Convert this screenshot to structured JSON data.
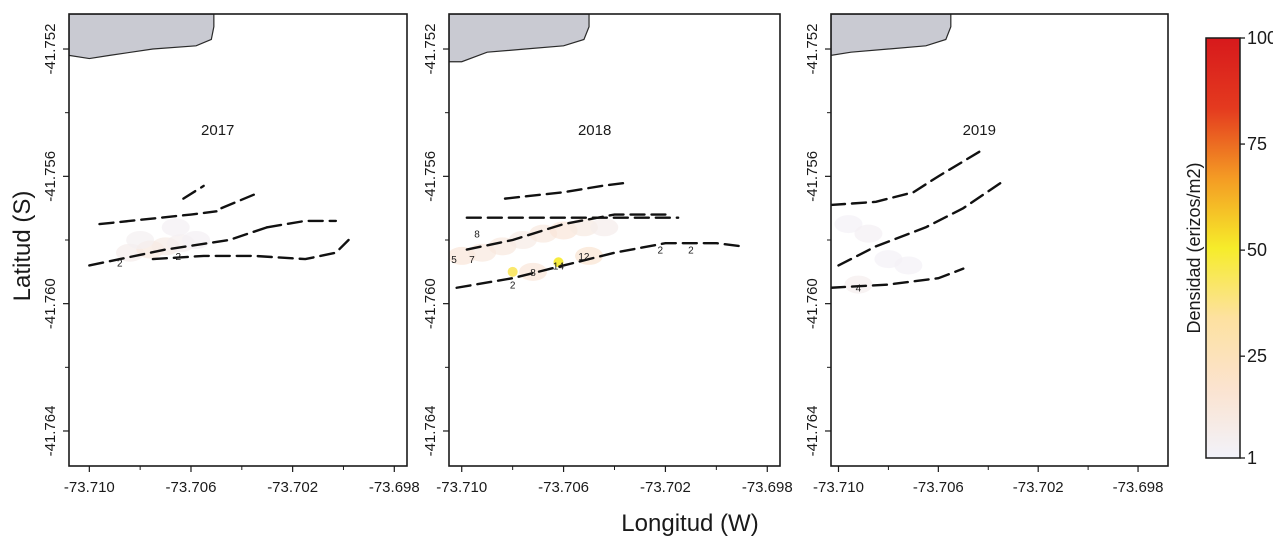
{
  "figure": {
    "xlabel": "Longitud (W)",
    "ylabel": "Latitud (S)"
  },
  "chart_data": [
    {
      "type": "heatmap",
      "title": "2017",
      "x_ticks": [
        "-73.710",
        "-73.706",
        "-73.702",
        "-73.698"
      ],
      "x_tick_values": [
        -73.71,
        -73.706,
        -73.702,
        -73.698
      ],
      "y_ticks": [
        "-41.752",
        "-41.756",
        "-41.760",
        "-41.764"
      ],
      "y_tick_values": [
        -41.752,
        -41.756,
        -41.76,
        -41.764
      ],
      "xlim": [
        -73.7108,
        -73.6975
      ],
      "ylim": [
        -41.7651,
        -41.7509
      ],
      "land_polygon": [
        [
          -73.7108,
          -41.7509
        ],
        [
          -73.7051,
          -41.7509
        ],
        [
          -73.7051,
          -41.7513
        ],
        [
          -73.7052,
          -41.7517
        ],
        [
          -73.7058,
          -41.7519
        ],
        [
          -73.7075,
          -41.752
        ],
        [
          -73.7092,
          -41.7522
        ],
        [
          -73.71,
          -41.7523
        ],
        [
          -73.7108,
          -41.7522
        ]
      ],
      "transects": [
        [
          [
            -73.7096,
            -41.7575
          ],
          [
            -73.706,
            -41.7572
          ],
          [
            -73.705,
            -41.7571
          ]
        ],
        [
          [
            -73.7063,
            -41.7567
          ],
          [
            -73.7055,
            -41.7563
          ]
        ],
        [
          [
            -73.7048,
            -41.757
          ],
          [
            -73.7033,
            -41.7565
          ]
        ],
        [
          [
            -73.71,
            -41.7588
          ],
          [
            -73.707,
            -41.7583
          ],
          [
            -73.7045,
            -41.758
          ],
          [
            -73.703,
            -41.7576
          ]
        ],
        [
          [
            -73.703,
            -41.7576
          ],
          [
            -73.7015,
            -41.7574
          ],
          [
            -73.7003,
            -41.7574
          ]
        ],
        [
          [
            -73.7075,
            -41.7586
          ],
          [
            -73.7055,
            -41.7585
          ],
          [
            -73.7035,
            -41.7585
          ],
          [
            -73.7015,
            -41.7586
          ],
          [
            -73.7003,
            -41.7584
          ],
          [
            -73.6998,
            -41.758
          ]
        ]
      ],
      "density_points": [
        {
          "x": -73.7084,
          "y": -41.7584,
          "value": 6
        },
        {
          "x": -73.7076,
          "y": -41.7583,
          "value": 10
        },
        {
          "x": -73.707,
          "y": -41.7582,
          "value": 8
        },
        {
          "x": -73.7064,
          "y": -41.7581,
          "value": 5
        },
        {
          "x": -73.7058,
          "y": -41.758,
          "value": 3
        },
        {
          "x": -73.708,
          "y": -41.758,
          "value": 4
        },
        {
          "x": -73.7066,
          "y": -41.7576,
          "value": 3
        }
      ],
      "labels": [
        {
          "text": "2",
          "x": -73.7088,
          "y": -41.7587
        },
        {
          "text": "2",
          "x": -73.7065,
          "y": -41.7585
        }
      ]
    },
    {
      "type": "heatmap",
      "title": "2018",
      "x_ticks": [
        "-73.710",
        "-73.706",
        "-73.702",
        "-73.698"
      ],
      "x_tick_values": [
        -73.71,
        -73.706,
        -73.702,
        -73.698
      ],
      "y_ticks": [
        "-41.752",
        "-41.756",
        "-41.760",
        "-41.764"
      ],
      "y_tick_values": [
        -41.752,
        -41.756,
        -41.76,
        -41.764
      ],
      "xlim": [
        -73.7105,
        -73.6975
      ],
      "ylim": [
        -41.7651,
        -41.7509
      ],
      "land_polygon": [
        [
          -73.7105,
          -41.7509
        ],
        [
          -73.705,
          -41.7509
        ],
        [
          -73.705,
          -41.7513
        ],
        [
          -73.7052,
          -41.7517
        ],
        [
          -73.706,
          -41.7519
        ],
        [
          -73.7075,
          -41.752
        ],
        [
          -73.709,
          -41.7521
        ],
        [
          -73.71,
          -41.7524
        ],
        [
          -73.7105,
          -41.7524
        ]
      ],
      "transects": [
        [
          [
            -73.7083,
            -41.7567
          ],
          [
            -73.706,
            -41.7565
          ],
          [
            -73.7045,
            -41.7563
          ],
          [
            -73.7035,
            -41.7562
          ]
        ],
        [
          [
            -73.7098,
            -41.7573
          ],
          [
            -73.708,
            -41.7573
          ],
          [
            -73.706,
            -41.7573
          ],
          [
            -73.704,
            -41.7573
          ],
          [
            -73.7015,
            -41.7573
          ]
        ],
        [
          [
            -73.7098,
            -41.7583
          ],
          [
            -73.708,
            -41.758
          ],
          [
            -73.706,
            -41.7575
          ],
          [
            -73.704,
            -41.7572
          ],
          [
            -73.702,
            -41.7572
          ]
        ],
        [
          [
            -73.7102,
            -41.7595
          ],
          [
            -73.708,
            -41.7592
          ],
          [
            -73.706,
            -41.7588
          ],
          [
            -73.704,
            -41.7584
          ],
          [
            -73.702,
            -41.7581
          ],
          [
            -73.7,
            -41.7581
          ],
          [
            -73.699,
            -41.7582
          ]
        ]
      ],
      "density_points": [
        {
          "x": -73.71,
          "y": -41.7585,
          "value": 12
        },
        {
          "x": -73.7092,
          "y": -41.7584,
          "value": 10
        },
        {
          "x": -73.7084,
          "y": -41.7582,
          "value": 10
        },
        {
          "x": -73.7076,
          "y": -41.758,
          "value": 8
        },
        {
          "x": -73.7068,
          "y": -41.7578,
          "value": 10
        },
        {
          "x": -73.706,
          "y": -41.7577,
          "value": 12
        },
        {
          "x": -73.7052,
          "y": -41.7576,
          "value": 9
        },
        {
          "x": -73.7044,
          "y": -41.7576,
          "value": 6
        },
        {
          "x": -73.708,
          "y": -41.759,
          "value": 40
        },
        {
          "x": -73.7062,
          "y": -41.7587,
          "value": 48
        },
        {
          "x": -73.7072,
          "y": -41.759,
          "value": 12
        },
        {
          "x": -73.705,
          "y": -41.7585,
          "value": 14
        }
      ],
      "labels": [
        {
          "text": "8",
          "x": -73.7094,
          "y": -41.7578
        },
        {
          "text": "7",
          "x": -73.7096,
          "y": -41.7586
        },
        {
          "text": "5",
          "x": -73.7103,
          "y": -41.7586
        },
        {
          "text": "2",
          "x": -73.708,
          "y": -41.7594
        },
        {
          "text": "8",
          "x": -73.7072,
          "y": -41.759
        },
        {
          "text": "14",
          "x": -73.7062,
          "y": -41.7588
        },
        {
          "text": "12",
          "x": -73.7052,
          "y": -41.7585
        },
        {
          "text": "2",
          "x": -73.7022,
          "y": -41.7583
        },
        {
          "text": "2",
          "x": -73.701,
          "y": -41.7583
        }
      ]
    },
    {
      "type": "heatmap",
      "title": "2019",
      "x_ticks": [
        "-73.710",
        "-73.706",
        "-73.702",
        "-73.698"
      ],
      "x_tick_values": [
        -73.71,
        -73.706,
        -73.702,
        -73.698
      ],
      "y_ticks": [
        "-41.752",
        "-41.756",
        "-41.760",
        "-41.764"
      ],
      "y_tick_values": [
        -41.752,
        -41.756,
        -41.76,
        -41.764
      ],
      "xlim": [
        -73.7103,
        -73.6968
      ],
      "ylim": [
        -41.7651,
        -41.7509
      ],
      "land_polygon": [
        [
          -73.7103,
          -41.7509
        ],
        [
          -73.7055,
          -41.7509
        ],
        [
          -73.7055,
          -41.7513
        ],
        [
          -73.7057,
          -41.7517
        ],
        [
          -73.7065,
          -41.7519
        ],
        [
          -73.708,
          -41.752
        ],
        [
          -73.7095,
          -41.7521
        ],
        [
          -73.7103,
          -41.7522
        ]
      ],
      "transects": [
        [
          [
            -73.7103,
            -41.7569
          ],
          [
            -73.7085,
            -41.7568
          ],
          [
            -73.707,
            -41.7565
          ],
          [
            -73.706,
            -41.756
          ],
          [
            -73.7043,
            -41.7552
          ]
        ],
        [
          [
            -73.71,
            -41.7588
          ],
          [
            -73.7085,
            -41.7582
          ],
          [
            -73.7065,
            -41.7576
          ],
          [
            -73.705,
            -41.757
          ],
          [
            -73.7033,
            -41.7561
          ]
        ],
        [
          [
            -73.7103,
            -41.7595
          ],
          [
            -73.708,
            -41.7594
          ],
          [
            -73.706,
            -41.7592
          ],
          [
            -73.705,
            -41.7589
          ]
        ]
      ],
      "density_points": [
        {
          "x": -73.7096,
          "y": -41.7575,
          "value": 2
        },
        {
          "x": -73.7088,
          "y": -41.7578,
          "value": 3
        },
        {
          "x": -73.708,
          "y": -41.7586,
          "value": 2
        },
        {
          "x": -73.7072,
          "y": -41.7588,
          "value": 2
        },
        {
          "x": -73.7092,
          "y": -41.7594,
          "value": 5
        }
      ],
      "labels": [
        {
          "text": "4",
          "x": -73.7092,
          "y": -41.7595
        }
      ]
    }
  ],
  "colorbar": {
    "label": "Densidad (erizos/m2)",
    "ticks": [
      "100",
      "75",
      "50",
      "25",
      "1"
    ],
    "tick_values": [
      100,
      75,
      50,
      25,
      1
    ],
    "min": 1,
    "max": 100,
    "colors": [
      "#f2f2fa",
      "#fbe3cf",
      "#fde1a0",
      "#f6ec2a",
      "#f49b24",
      "#e43a1f",
      "#d7191c"
    ]
  },
  "colors": {
    "land": "#c9cad2",
    "frame": "#1a1a1a",
    "transect": "#111111"
  }
}
